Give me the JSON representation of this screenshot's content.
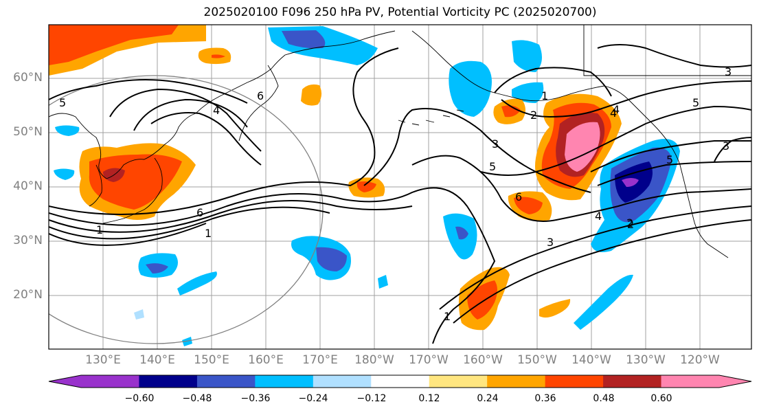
{
  "title": "2025020100 F096 250 hPa PV, Potential Vorticity PC (2025020700)",
  "map": {
    "lat_labels": [
      "60°N",
      "50°N",
      "40°N",
      "30°N",
      "20°N"
    ],
    "lon_labels": [
      "130°E",
      "140°E",
      "150°E",
      "160°E",
      "170°E",
      "180°W",
      "170°W",
      "160°W",
      "150°W",
      "140°W",
      "130°W",
      "120°W"
    ],
    "contour_labels": [
      "5",
      "4",
      "6",
      "6",
      "1",
      "1",
      "2",
      "3",
      "4",
      "5",
      "3",
      "5",
      "3",
      "1",
      "2",
      "4",
      "5",
      "6",
      "4",
      "3",
      "2",
      "1"
    ]
  },
  "colorbar": {
    "ticks": [
      "−0.60",
      "−0.48",
      "−0.36",
      "−0.24",
      "−0.12",
      "0.12",
      "0.24",
      "0.36",
      "0.48",
      "0.60"
    ],
    "colors": [
      "#9932cc",
      "#00008b",
      "#3a55c8",
      "#00bfff",
      "#b0e0ff",
      "#ffffff",
      "#ffe680",
      "#ffa500",
      "#ff4500",
      "#b22222",
      "#ff85b0",
      "#ff85b0"
    ]
  }
}
